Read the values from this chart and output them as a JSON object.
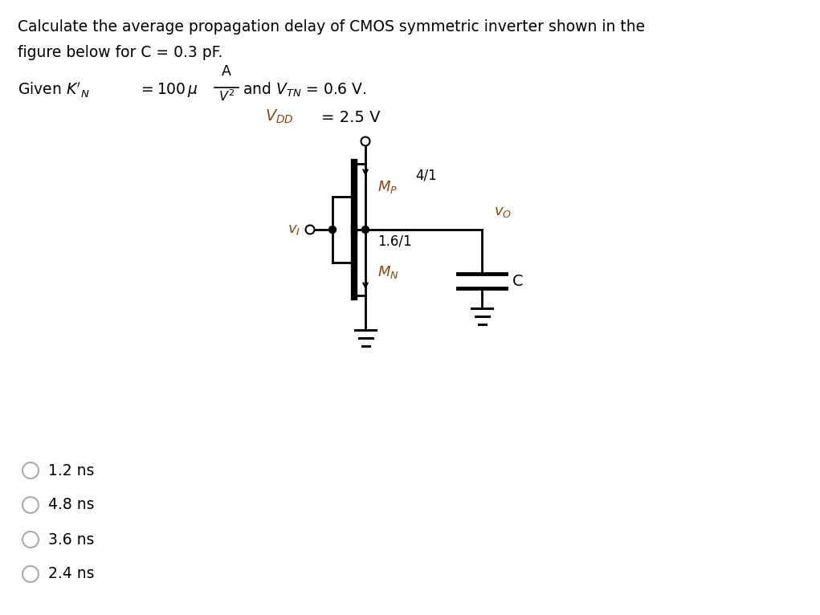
{
  "title_line1": "Calculate the average propagation delay of CMOS symmetric inverter shown in the",
  "title_line2": "figure below for C = 0.3 pF.",
  "vdd_text": "= 2.5 V",
  "mp_ratio": "4/1",
  "mn_ratio": "1.6/1",
  "vi_label": "v_I",
  "vo_label": "v_O",
  "c_label": "C",
  "choices": [
    "1.2 ns",
    "4.8 ns",
    "3.6 ns",
    "2.4 ns"
  ],
  "text_color": "#000000",
  "circuit_color": "#000000",
  "label_color": "#8B4513",
  "bg_color": "#ffffff",
  "title_fontsize": 13.5,
  "circuit_lw": 2.0,
  "gate_bar_lw": 6,
  "choice_circle_color": "#aaaaaa"
}
